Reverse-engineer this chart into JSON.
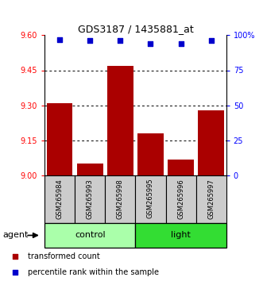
{
  "title": "GDS3187 / 1435881_at",
  "samples": [
    "GSM265984",
    "GSM265993",
    "GSM265998",
    "GSM265995",
    "GSM265996",
    "GSM265997"
  ],
  "bar_values": [
    9.31,
    9.05,
    9.47,
    9.18,
    9.07,
    9.28
  ],
  "percentile_values": [
    97,
    96,
    96,
    94,
    94,
    96
  ],
  "groups": [
    {
      "label": "control",
      "start": 0,
      "end": 3,
      "color": "#aaffaa"
    },
    {
      "label": "light",
      "start": 3,
      "end": 6,
      "color": "#33dd33"
    }
  ],
  "bar_color": "#AA0000",
  "percentile_color": "#0000CC",
  "ylim_left": [
    9.0,
    9.6
  ],
  "ylim_right": [
    0,
    100
  ],
  "yticks_left": [
    9.0,
    9.15,
    9.3,
    9.45,
    9.6
  ],
  "yticks_right": [
    0,
    25,
    50,
    75,
    100
  ],
  "ytick_labels_right": [
    "0",
    "25",
    "50",
    "75",
    "100%"
  ],
  "grid_lines": [
    9.15,
    9.3,
    9.45
  ],
  "sample_box_color": "#cccccc",
  "agent_label": "agent",
  "legend_items": [
    {
      "label": "transformed count",
      "color": "#AA0000"
    },
    {
      "label": "percentile rank within the sample",
      "color": "#0000CC"
    }
  ]
}
